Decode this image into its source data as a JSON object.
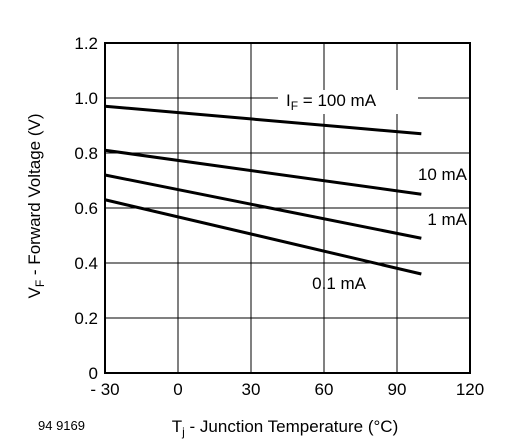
{
  "chart_data": {
    "type": "line",
    "xlabel_main": "T",
    "xlabel_sub": "j",
    "xlabel_rest": " - Junction Temperature (°C)",
    "ylabel_main": "V",
    "ylabel_sub": "F",
    "ylabel_rest": " - Forward Voltage (V)",
    "xlim": [
      -30,
      120
    ],
    "ylim": [
      0,
      1.2
    ],
    "x_ticks": [
      -30,
      0,
      30,
      60,
      90,
      120
    ],
    "x_tick_labels": [
      "- 30",
      "0",
      "30",
      "60",
      "90",
      "120"
    ],
    "y_ticks": [
      0,
      0.2,
      0.4,
      0.6,
      0.8,
      1.0,
      1.2
    ],
    "y_tick_labels": [
      "0",
      "0.2",
      "0.4",
      "0.6",
      "0.8",
      "1.0",
      "1.2"
    ],
    "grid": true,
    "series": [
      {
        "name_main": "I",
        "name_sub": "F",
        "name_rest": " = 100 mA",
        "x": [
          -30,
          100
        ],
        "y": [
          0.97,
          0.87
        ]
      },
      {
        "name": "10 mA",
        "x": [
          -30,
          100
        ],
        "y": [
          0.81,
          0.65
        ]
      },
      {
        "name": "1 mA",
        "x": [
          -30,
          100
        ],
        "y": [
          0.72,
          0.49
        ]
      },
      {
        "name": "0.1 mA",
        "x": [
          -30,
          100
        ],
        "y": [
          0.63,
          0.36
        ]
      }
    ]
  },
  "document_id": "94 9169"
}
